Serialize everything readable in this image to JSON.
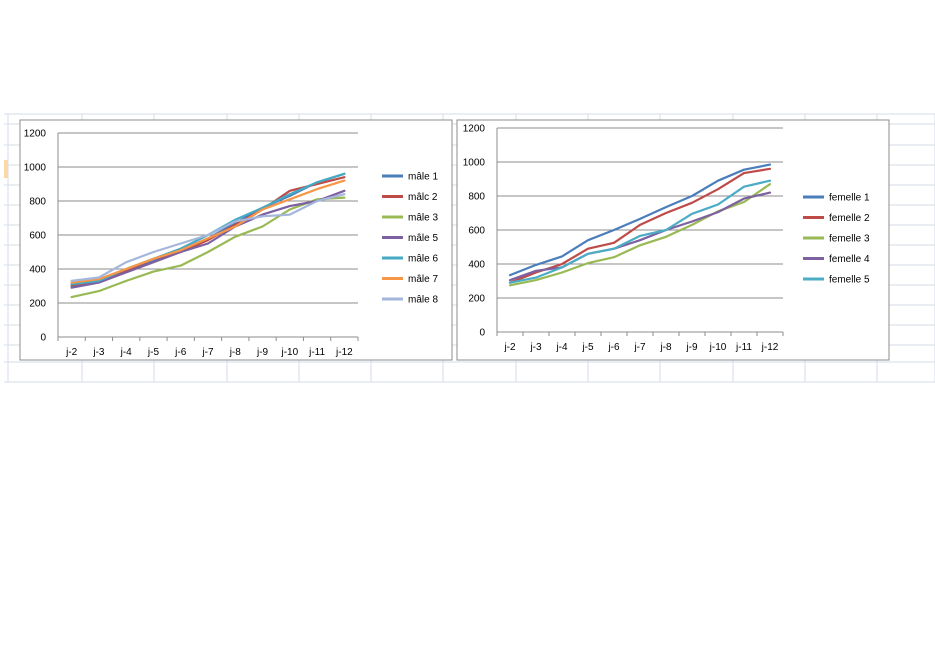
{
  "theme": {
    "gridline_color": "#d6dce8",
    "cell_highlight_color": "#fbd9a6",
    "chart_border_color": "#8c8c8c"
  },
  "chart_data": [
    {
      "type": "line",
      "title": "",
      "xlabel": "",
      "ylabel": "",
      "categories": [
        "j-2",
        "j-3",
        "j-4",
        "j-5",
        "j-6",
        "j-7",
        "j-8",
        "j-9",
        "j-10",
        "j-11",
        "j-12"
      ],
      "ylim": [
        0,
        1200
      ],
      "yticks": [
        0,
        200,
        400,
        600,
        800,
        1000,
        1200
      ],
      "ytick_labels": [
        "0",
        "200",
        "400",
        "600",
        "800",
        "1000",
        "1200"
      ],
      "grid": true,
      "legend_position": "right",
      "series": [
        {
          "name": "mâle 1",
          "color": "#4a7ebb",
          "values": [
            300,
            330,
            390,
            450,
            510,
            580,
            670,
            760,
            830,
            910,
            960
          ]
        },
        {
          "name": "mâlc 2",
          "color": "#be4b48",
          "values": [
            305,
            325,
            390,
            460,
            500,
            570,
            660,
            750,
            860,
            900,
            940
          ]
        },
        {
          "name": "mâle 3",
          "color": "#98b954",
          "values": [
            235,
            270,
            330,
            385,
            420,
            500,
            590,
            650,
            750,
            810,
            820
          ]
        },
        {
          "name": "mâle 5",
          "color": "#7d60a0",
          "values": [
            290,
            320,
            380,
            440,
            500,
            550,
            650,
            720,
            770,
            800,
            860
          ]
        },
        {
          "name": "mâle 6",
          "color": "#46aac5",
          "values": [
            310,
            330,
            400,
            460,
            520,
            600,
            690,
            760,
            840,
            910,
            960
          ]
        },
        {
          "name": "mâle 7",
          "color": "#f79646",
          "values": [
            320,
            340,
            400,
            460,
            510,
            580,
            650,
            750,
            810,
            870,
            920
          ]
        },
        {
          "name": "mâle 8",
          "color": "#a4b6db",
          "values": [
            330,
            350,
            440,
            500,
            550,
            600,
            680,
            710,
            720,
            800,
            840
          ]
        }
      ]
    },
    {
      "type": "line",
      "title": "",
      "xlabel": "",
      "ylabel": "",
      "categories": [
        "j-2",
        "j-3",
        "j-4",
        "j-5",
        "j-6",
        "j-7",
        "j-8",
        "j-9",
        "j-10",
        "j-11",
        "j-12"
      ],
      "ylim": [
        0,
        1200
      ],
      "yticks": [
        0,
        200,
        400,
        600,
        800,
        1000,
        1200
      ],
      "ytick_labels": [
        "0",
        "200",
        "400",
        "600",
        "800",
        "1000",
        "1200"
      ],
      "grid": true,
      "legend_position": "right",
      "series": [
        {
          "name": "femelle 1",
          "color": "#4a7ebb",
          "values": [
            335,
            395,
            445,
            540,
            600,
            665,
            735,
            800,
            890,
            955,
            985
          ]
        },
        {
          "name": "femelle 2",
          "color": "#be4b48",
          "values": [
            290,
            350,
            400,
            490,
            525,
            630,
            700,
            760,
            840,
            935,
            960
          ]
        },
        {
          "name": "femelle 3",
          "color": "#98b954",
          "values": [
            275,
            305,
            350,
            405,
            440,
            510,
            560,
            630,
            710,
            765,
            870
          ]
        },
        {
          "name": "femelle 4",
          "color": "#7d60a0",
          "values": [
            305,
            360,
            380,
            460,
            490,
            540,
            600,
            650,
            705,
            785,
            820
          ]
        },
        {
          "name": "femelle 5",
          "color": "#4bacc6",
          "values": [
            290,
            320,
            380,
            460,
            490,
            565,
            600,
            695,
            750,
            855,
            890
          ]
        }
      ]
    }
  ]
}
